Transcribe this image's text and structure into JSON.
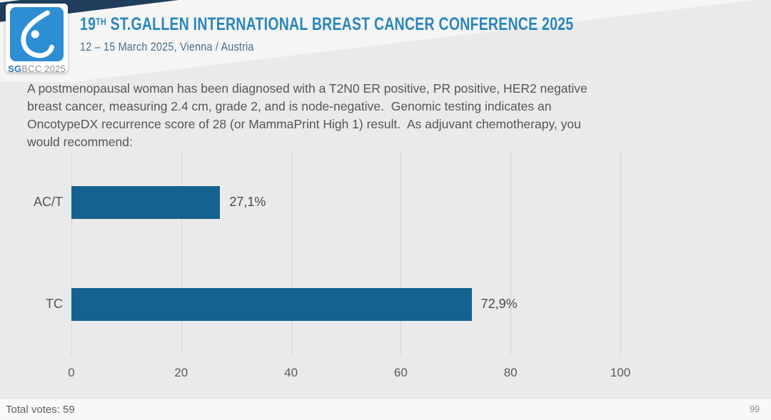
{
  "header": {
    "logo": {
      "sg": "SG",
      "rest": "BCC 2025",
      "glyph": "breast-drop-icon"
    },
    "title_num": "19",
    "title_sup": "TH",
    "title_rest": " ST.GALLEN INTERNATIONAL BREAST CANCER CONFERENCE 2025",
    "subtitle": "12 – 15 March 2025, Vienna / Austria"
  },
  "question": {
    "lines": [
      "A postmenopausal woman has been diagnosed with a T2N0 ER positive, PR positive, HER2 negative",
      "breast cancer, measuring 2.4 cm, grade 2, and is node-negative.  Genomic testing indicates an",
      "OncotypeDX recurrence score of 28 (or MammaPrint High 1) result.  As adjuvant chemotherapy, you",
      "would recommend:"
    ]
  },
  "chart_data": {
    "type": "bar",
    "orientation": "horizontal",
    "categories": [
      "AC/T",
      "TC"
    ],
    "values": [
      27.1,
      72.9
    ],
    "value_labels": [
      "27,1%",
      "72,9%"
    ],
    "x_ticks": [
      0,
      20,
      40,
      60,
      80,
      100
    ],
    "xlim": [
      0,
      100
    ],
    "grid": true,
    "legend": false,
    "bar_color": "#15618f",
    "gridline_color": "#d6d6d9"
  },
  "footer": {
    "total_votes": "Total votes: 59",
    "page_number": "99"
  },
  "colors": {
    "slide_background": "#eaeaea",
    "header_wedge": "#f5f5f5",
    "navy_band": "#203e5c",
    "logo_blue": "#2d8ed3",
    "title_blue": "#2a86bb",
    "subtitle_steel": "#49708c",
    "question_text": "#565656",
    "bar_fill": "#15618f"
  }
}
